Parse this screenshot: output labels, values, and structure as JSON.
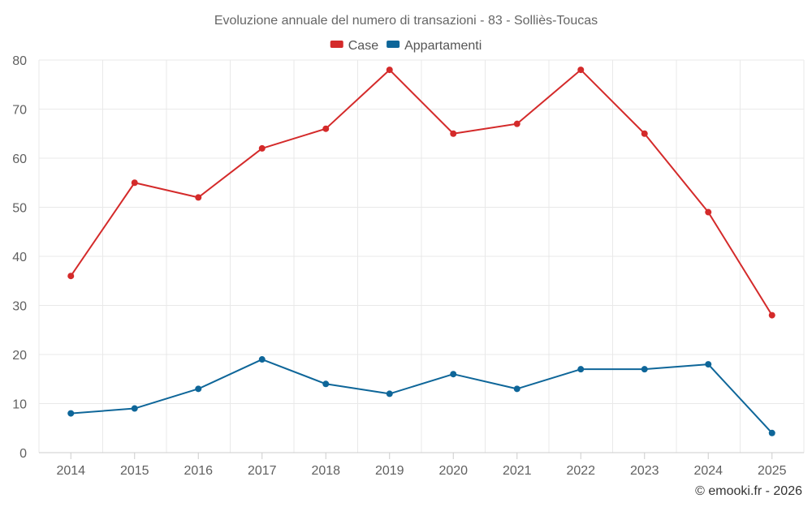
{
  "chart_data": {
    "type": "line",
    "title": "Evoluzione annuale del numero di transazioni - 83 - Solliès-Toucas",
    "categories": [
      "2014",
      "2015",
      "2016",
      "2017",
      "2018",
      "2019",
      "2020",
      "2021",
      "2022",
      "2023",
      "2024",
      "2025"
    ],
    "ylim": [
      0,
      80
    ],
    "yticks": [
      0,
      10,
      20,
      30,
      40,
      50,
      60,
      70,
      80
    ],
    "xlabel": "",
    "ylabel": "",
    "grid": true,
    "legend_position": "top-center",
    "series": [
      {
        "name": "Case",
        "color": "#d42a2a",
        "values": [
          36,
          55,
          52,
          62,
          66,
          78,
          65,
          67,
          78,
          65,
          49,
          28
        ]
      },
      {
        "name": "Appartamenti",
        "color": "#0e6699",
        "values": [
          8,
          9,
          13,
          19,
          14,
          12,
          16,
          13,
          17,
          17,
          18,
          4
        ]
      }
    ]
  },
  "credit": "© emooki.fr - 2026"
}
